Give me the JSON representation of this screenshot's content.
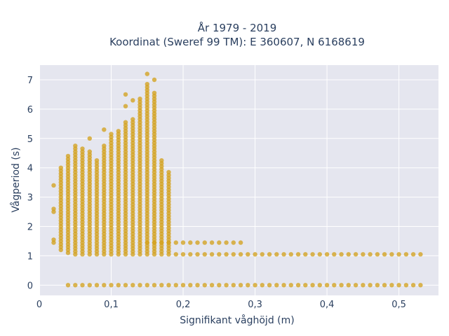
{
  "chart_data": {
    "type": "scatter",
    "title_line1": "År 1979 - 2019",
    "title_line2": "Koordinat (Sweref 99 TM): E 360607, N 6168619",
    "xlabel": "Signifikant våghöjd (m)",
    "ylabel": "Vågperiod (s)",
    "xlim": [
      0,
      0.555
    ],
    "ylim": [
      -0.35,
      7.5
    ],
    "xticks": [
      0,
      0.1,
      0.2,
      0.3,
      0.4,
      0.5
    ],
    "xtick_labels": [
      "0",
      "0,1",
      "0,2",
      "0,3",
      "0,4",
      "0,5"
    ],
    "yticks": [
      0,
      1,
      2,
      3,
      4,
      5,
      6,
      7
    ],
    "ytick_labels": [
      "0",
      "1",
      "2",
      "3",
      "4",
      "5",
      "6",
      "7"
    ],
    "grid": true,
    "marker_color": "#d4a21f",
    "plot_bg": "#e5e6ef",
    "text_color": "#2a3f5f",
    "columns": [
      {
        "x": 0.02,
        "ymin": 1.45,
        "ymax": 1.6,
        "extra": [
          2.5,
          2.6,
          3.4
        ]
      },
      {
        "x": 0.03,
        "ymin": 1.2,
        "ymax": 4.0,
        "extra": []
      },
      {
        "x": 0.04,
        "ymin": 1.1,
        "ymax": 4.4,
        "extra": [
          0
        ]
      },
      {
        "x": 0.05,
        "ymin": 1.05,
        "ymax": 4.8,
        "extra": [
          0
        ]
      },
      {
        "x": 0.06,
        "ymin": 1.05,
        "ymax": 4.7,
        "extra": [
          0
        ]
      },
      {
        "x": 0.07,
        "ymin": 1.05,
        "ymax": 4.6,
        "extra": [
          0,
          5.0
        ]
      },
      {
        "x": 0.08,
        "ymin": 1.05,
        "ymax": 4.3,
        "extra": [
          0
        ]
      },
      {
        "x": 0.09,
        "ymin": 1.05,
        "ymax": 4.8,
        "extra": [
          0,
          5.3
        ]
      },
      {
        "x": 0.1,
        "ymin": 1.05,
        "ymax": 5.2,
        "extra": [
          0
        ]
      },
      {
        "x": 0.11,
        "ymin": 1.05,
        "ymax": 5.3,
        "extra": [
          0
        ]
      },
      {
        "x": 0.12,
        "ymin": 1.05,
        "ymax": 5.6,
        "extra": [
          0,
          6.1,
          6.5
        ]
      },
      {
        "x": 0.13,
        "ymin": 1.05,
        "ymax": 5.7,
        "extra": [
          0,
          6.3
        ]
      },
      {
        "x": 0.14,
        "ymin": 1.05,
        "ymax": 6.4,
        "extra": [
          0
        ]
      },
      {
        "x": 0.15,
        "ymin": 1.05,
        "ymax": 6.9,
        "extra": [
          0,
          7.2
        ]
      },
      {
        "x": 0.16,
        "ymin": 1.05,
        "ymax": 6.6,
        "extra": [
          0,
          7.0
        ]
      },
      {
        "x": 0.17,
        "ymin": 1.05,
        "ymax": 4.3,
        "extra": [
          0
        ]
      },
      {
        "x": 0.18,
        "ymin": 1.05,
        "ymax": 3.9,
        "extra": [
          0
        ]
      }
    ],
    "band_low_T": 1.05,
    "band_low_xmax": 0.53,
    "band_mid_T": 1.45,
    "band_mid_xmax": 0.28,
    "band_zero_T": 0,
    "band_zero_xmax": 0.53
  }
}
